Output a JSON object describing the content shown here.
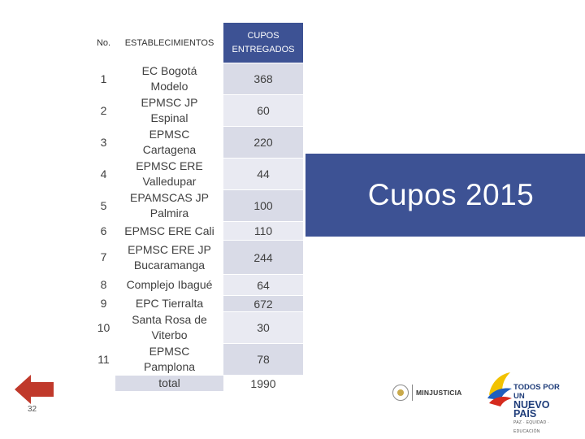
{
  "table": {
    "headers": {
      "no": "No.",
      "establecimientos": "ESTABLECIMIENTOS",
      "cupos": "CUPOS ENTREGADOS"
    },
    "rows": [
      {
        "no": "1",
        "establecimiento": "EC Bogotá Modelo",
        "cupos": "368"
      },
      {
        "no": "2",
        "establecimiento": "EPMSC JP Espinal",
        "cupos": "60"
      },
      {
        "no": "3",
        "establecimiento": "EPMSC Cartagena",
        "cupos": "220"
      },
      {
        "no": "4",
        "establecimiento": "EPMSC ERE Valledupar",
        "cupos": "44"
      },
      {
        "no": "5",
        "establecimiento": "EPAMSCAS JP Palmira",
        "cupos": "100"
      },
      {
        "no": "6",
        "establecimiento": "EPMSC ERE Cali",
        "cupos": "110"
      },
      {
        "no": "7",
        "establecimiento": "EPMSC ERE JP Bucaramanga",
        "cupos": "244"
      },
      {
        "no": "8",
        "establecimiento": "Complejo Ibagué",
        "cupos": "64"
      },
      {
        "no": "9",
        "establecimiento": "EPC Tierralta",
        "cupos": "672"
      },
      {
        "no": "10",
        "establecimiento": "Santa Rosa de Viterbo",
        "cupos": "30"
      },
      {
        "no": "11",
        "establecimiento": "EPMSC Pamplona",
        "cupos": "78"
      }
    ],
    "total": {
      "label": "total",
      "cupos": "1990"
    }
  },
  "title": "Cupos 2015",
  "page_number": "32",
  "logos": {
    "minjusticia": "MINJUSTICIA",
    "nuevo_pais_line1": "TODOS POR UN",
    "nuevo_pais_line2": "NUEVO PAÍS",
    "nuevo_pais_line3": "PAZ · EQUIDAD · EDUCACIÓN"
  },
  "colors": {
    "accent": "#3d5294",
    "cell_band": "#d9dbe7",
    "arrow": "#c0392b"
  }
}
